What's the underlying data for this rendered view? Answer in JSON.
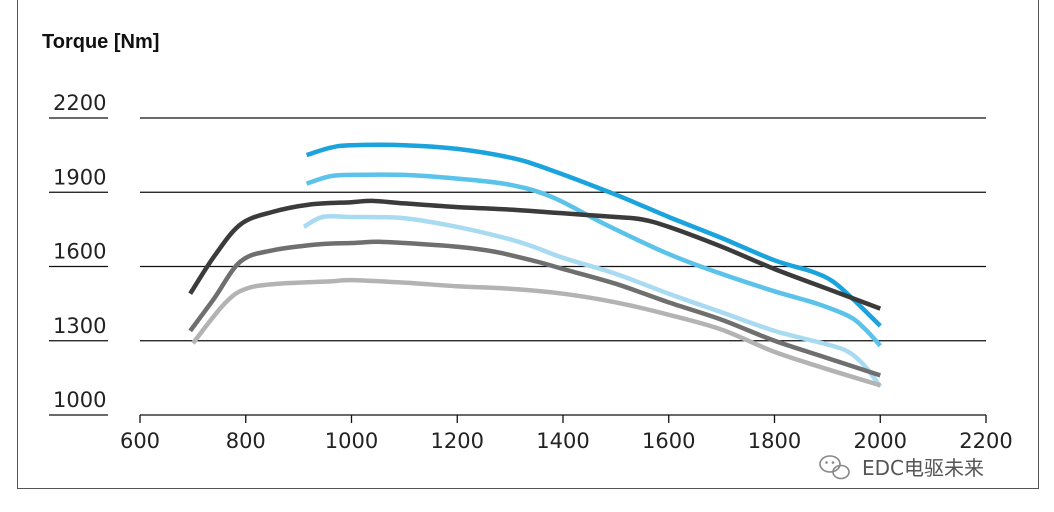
{
  "chart_data": {
    "type": "line",
    "ylabel": "Torque  [Nm]",
    "xlabel": "",
    "xlim": [
      600,
      2200
    ],
    "ylim": [
      1000,
      2200
    ],
    "x_ticks": [
      600,
      800,
      1000,
      1200,
      1400,
      1600,
      1800,
      2000,
      2200
    ],
    "y_ticks": [
      1000,
      1300,
      1600,
      1900,
      2200
    ],
    "grid": "horizontal",
    "series": [
      {
        "color": "#1aa3dc",
        "width": 4.5,
        "points": [
          [
            915,
            2050
          ],
          [
            960,
            2080
          ],
          [
            1000,
            2090
          ],
          [
            1100,
            2090
          ],
          [
            1200,
            2075
          ],
          [
            1300,
            2040
          ],
          [
            1370,
            1995
          ],
          [
            1500,
            1890
          ],
          [
            1600,
            1800
          ],
          [
            1700,
            1715
          ],
          [
            1800,
            1625
          ],
          [
            1870,
            1580
          ],
          [
            1910,
            1540
          ],
          [
            1950,
            1465
          ],
          [
            2000,
            1360
          ]
        ]
      },
      {
        "color": "#5bc2ea",
        "width": 4.5,
        "points": [
          [
            915,
            1935
          ],
          [
            960,
            1965
          ],
          [
            1000,
            1970
          ],
          [
            1100,
            1970
          ],
          [
            1200,
            1955
          ],
          [
            1300,
            1930
          ],
          [
            1380,
            1880
          ],
          [
            1480,
            1770
          ],
          [
            1600,
            1650
          ],
          [
            1700,
            1570
          ],
          [
            1800,
            1500
          ],
          [
            1880,
            1450
          ],
          [
            1940,
            1400
          ],
          [
            1970,
            1350
          ],
          [
            2000,
            1280
          ]
        ]
      },
      {
        "color": "#3b3b3b",
        "width": 4.5,
        "points": [
          [
            695,
            1490
          ],
          [
            740,
            1640
          ],
          [
            790,
            1770
          ],
          [
            850,
            1820
          ],
          [
            920,
            1850
          ],
          [
            1000,
            1860
          ],
          [
            1040,
            1865
          ],
          [
            1100,
            1855
          ],
          [
            1200,
            1840
          ],
          [
            1300,
            1830
          ],
          [
            1400,
            1815
          ],
          [
            1500,
            1800
          ],
          [
            1550,
            1790
          ],
          [
            1600,
            1760
          ],
          [
            1700,
            1680
          ],
          [
            1800,
            1590
          ],
          [
            1900,
            1510
          ],
          [
            2000,
            1430
          ]
        ]
      },
      {
        "color": "#a8daf2",
        "width": 4.5,
        "points": [
          [
            910,
            1760
          ],
          [
            945,
            1800
          ],
          [
            1000,
            1800
          ],
          [
            1100,
            1795
          ],
          [
            1200,
            1760
          ],
          [
            1300,
            1710
          ],
          [
            1350,
            1675
          ],
          [
            1400,
            1635
          ],
          [
            1500,
            1570
          ],
          [
            1600,
            1490
          ],
          [
            1700,
            1415
          ],
          [
            1800,
            1340
          ],
          [
            1900,
            1285
          ],
          [
            1940,
            1255
          ],
          [
            1970,
            1200
          ],
          [
            2000,
            1115
          ]
        ]
      },
      {
        "color": "#6f6f6f",
        "width": 4.5,
        "points": [
          [
            695,
            1340
          ],
          [
            740,
            1470
          ],
          [
            790,
            1620
          ],
          [
            850,
            1665
          ],
          [
            940,
            1690
          ],
          [
            1000,
            1695
          ],
          [
            1050,
            1700
          ],
          [
            1100,
            1695
          ],
          [
            1200,
            1680
          ],
          [
            1270,
            1660
          ],
          [
            1350,
            1620
          ],
          [
            1400,
            1590
          ],
          [
            1500,
            1530
          ],
          [
            1600,
            1455
          ],
          [
            1700,
            1385
          ],
          [
            1800,
            1300
          ],
          [
            1900,
            1230
          ],
          [
            2000,
            1160
          ]
        ]
      },
      {
        "color": "#b3b3b3",
        "width": 4.5,
        "points": [
          [
            700,
            1290
          ],
          [
            760,
            1450
          ],
          [
            800,
            1510
          ],
          [
            860,
            1530
          ],
          [
            960,
            1540
          ],
          [
            1000,
            1545
          ],
          [
            1100,
            1535
          ],
          [
            1200,
            1520
          ],
          [
            1300,
            1510
          ],
          [
            1400,
            1490
          ],
          [
            1500,
            1455
          ],
          [
            1600,
            1405
          ],
          [
            1700,
            1345
          ],
          [
            1800,
            1255
          ],
          [
            1900,
            1185
          ],
          [
            2000,
            1120
          ]
        ]
      }
    ]
  },
  "watermark": {
    "icon": "wechat-icon",
    "text": "EDC电驱未来"
  }
}
